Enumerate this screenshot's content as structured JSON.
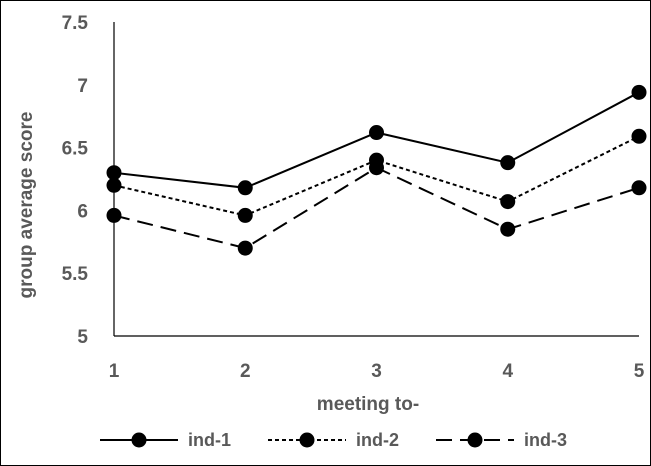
{
  "chart_data": {
    "type": "line",
    "xlabel": "meeting to-",
    "ylabel": "group average score",
    "x": [
      1,
      2,
      3,
      4,
      5
    ],
    "x_tick_labels": [
      "1",
      "2",
      "3",
      "4",
      "5"
    ],
    "ylim": [
      5,
      7.5
    ],
    "y_ticks": [
      5,
      5.5,
      6,
      6.5,
      7,
      7.5
    ],
    "y_tick_labels": [
      "5",
      "5.5",
      "6",
      "6.5",
      "7",
      "7.5"
    ],
    "grid": false,
    "legend_position": "bottom",
    "series": [
      {
        "name": "ind-1",
        "values": [
          6.3,
          6.18,
          6.62,
          6.38,
          6.94
        ],
        "line_style": "solid",
        "color": "#000000"
      },
      {
        "name": "ind-2",
        "values": [
          6.2,
          5.96,
          6.4,
          6.07,
          6.59
        ],
        "line_style": "dotted",
        "color": "#000000"
      },
      {
        "name": "ind-3",
        "values": [
          5.96,
          5.7,
          6.34,
          5.85,
          6.18
        ],
        "line_style": "dashed",
        "color": "#000000"
      }
    ]
  }
}
